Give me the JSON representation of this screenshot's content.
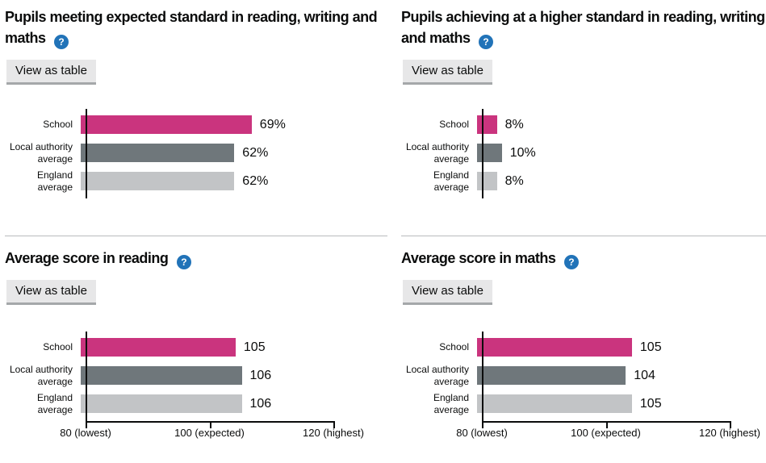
{
  "help_icon_glyph": "?",
  "colors": {
    "bar_school": "#ca347e",
    "bar_local_authority": "#6f777b",
    "bar_england": "#c2c4c6",
    "axis": "#0b0c0c",
    "text": "#0b0c0c",
    "help_icon_bg": "#2173b8",
    "button_bg": "#e7e7e8",
    "button_shadow": "#a5a8aa",
    "divider": "#b9bbbd"
  },
  "chart_data": [
    {
      "type": "bar",
      "orientation": "horizontal",
      "title": "Pupils meeting expected standard in reading, writing and maths",
      "button_label": "View as table",
      "categories": [
        "School",
        "Local authority average",
        "England average"
      ],
      "values": [
        69,
        62,
        62
      ],
      "value_labels": [
        "69%",
        "62%",
        "62%"
      ],
      "xlim": [
        0,
        100
      ],
      "x_axis_visible": false,
      "x_ticks": []
    },
    {
      "type": "bar",
      "orientation": "horizontal",
      "title": "Pupils achieving at a higher standard in reading, writing and maths",
      "button_label": "View as table",
      "categories": [
        "School",
        "Local authority average",
        "England average"
      ],
      "values": [
        8,
        10,
        8
      ],
      "value_labels": [
        "8%",
        "10%",
        "8%"
      ],
      "xlim": [
        0,
        100
      ],
      "x_axis_visible": false,
      "x_ticks": []
    },
    {
      "type": "bar",
      "orientation": "horizontal",
      "title": "Average score in reading",
      "button_label": "View as table",
      "categories": [
        "School",
        "Local authority average",
        "England average"
      ],
      "values": [
        105,
        106,
        106
      ],
      "value_labels": [
        "105",
        "106",
        "106"
      ],
      "xlim": [
        80,
        120
      ],
      "x_axis_visible": true,
      "x_ticks": [
        {
          "value": 80,
          "label": "80 (lowest)"
        },
        {
          "value": 100,
          "label": "100 (expected)"
        },
        {
          "value": 120,
          "label": "120 (highest)"
        }
      ]
    },
    {
      "type": "bar",
      "orientation": "horizontal",
      "title": "Average score in maths",
      "button_label": "View as table",
      "categories": [
        "School",
        "Local authority average",
        "England average"
      ],
      "values": [
        105,
        104,
        105
      ],
      "value_labels": [
        "105",
        "104",
        "105"
      ],
      "xlim": [
        80,
        120
      ],
      "x_axis_visible": true,
      "x_ticks": [
        {
          "value": 80,
          "label": "80 (lowest)"
        },
        {
          "value": 100,
          "label": "100 (expected)"
        },
        {
          "value": 120,
          "label": "120 (highest)"
        }
      ]
    }
  ]
}
